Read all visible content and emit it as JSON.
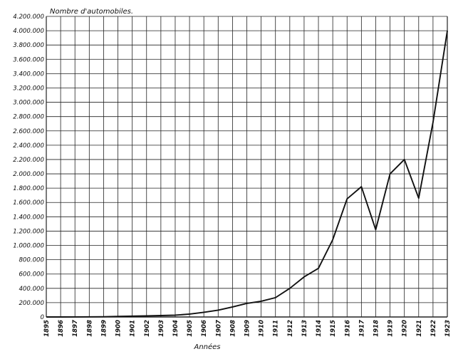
{
  "chart_data": {
    "type": "line",
    "title": "Nombre d'automobiles.",
    "xlabel": "Années",
    "ylabel": "Nombre d'automobiles.",
    "ylim": [
      0,
      4200000
    ],
    "grid": true,
    "y_tick_labels": [
      "0",
      "200.000",
      "400.000",
      "600.000",
      "800.000",
      "1.000.000",
      "1.200.000",
      "1.400.000",
      "1.600.000",
      "1.800.000",
      "2.000.000",
      "2.200.000",
      "2.400.000",
      "2.600.000",
      "2.800.000",
      "3.000.000",
      "3.200.000",
      "3.400.000",
      "3.600.000",
      "3.800.000",
      "4.000.000",
      "4.200.000"
    ],
    "x_tick_labels": [
      "1895",
      "1896",
      "1897",
      "1898",
      "1899",
      "1900",
      "1901",
      "1902",
      "1903",
      "1904",
      "1905",
      "1906",
      "1907",
      "1908",
      "1909",
      "1910",
      "1911",
      "1912",
      "1913",
      "1914",
      "1915",
      "1916",
      "1917",
      "1918",
      "1919",
      "1920",
      "1921",
      "1922",
      "1923"
    ],
    "x": [
      1895,
      1896,
      1897,
      1898,
      1899,
      1900,
      1901,
      1902,
      1903,
      1904,
      1905,
      1906,
      1907,
      1908,
      1909,
      1910,
      1911,
      1912,
      1913,
      1914,
      1915,
      1916,
      1917,
      1918,
      1919,
      1920,
      1921,
      1922,
      1923
    ],
    "series": [
      {
        "values": [
          0,
          0,
          1000,
          2000,
          3000,
          8000,
          12000,
          15000,
          20000,
          25000,
          40000,
          65000,
          95000,
          140000,
          190000,
          220000,
          270000,
          400000,
          560000,
          680000,
          1080000,
          1650000,
          1820000,
          1220000,
          2000000,
          2200000,
          1660000,
          2720000,
          4000000
        ]
      }
    ]
  }
}
